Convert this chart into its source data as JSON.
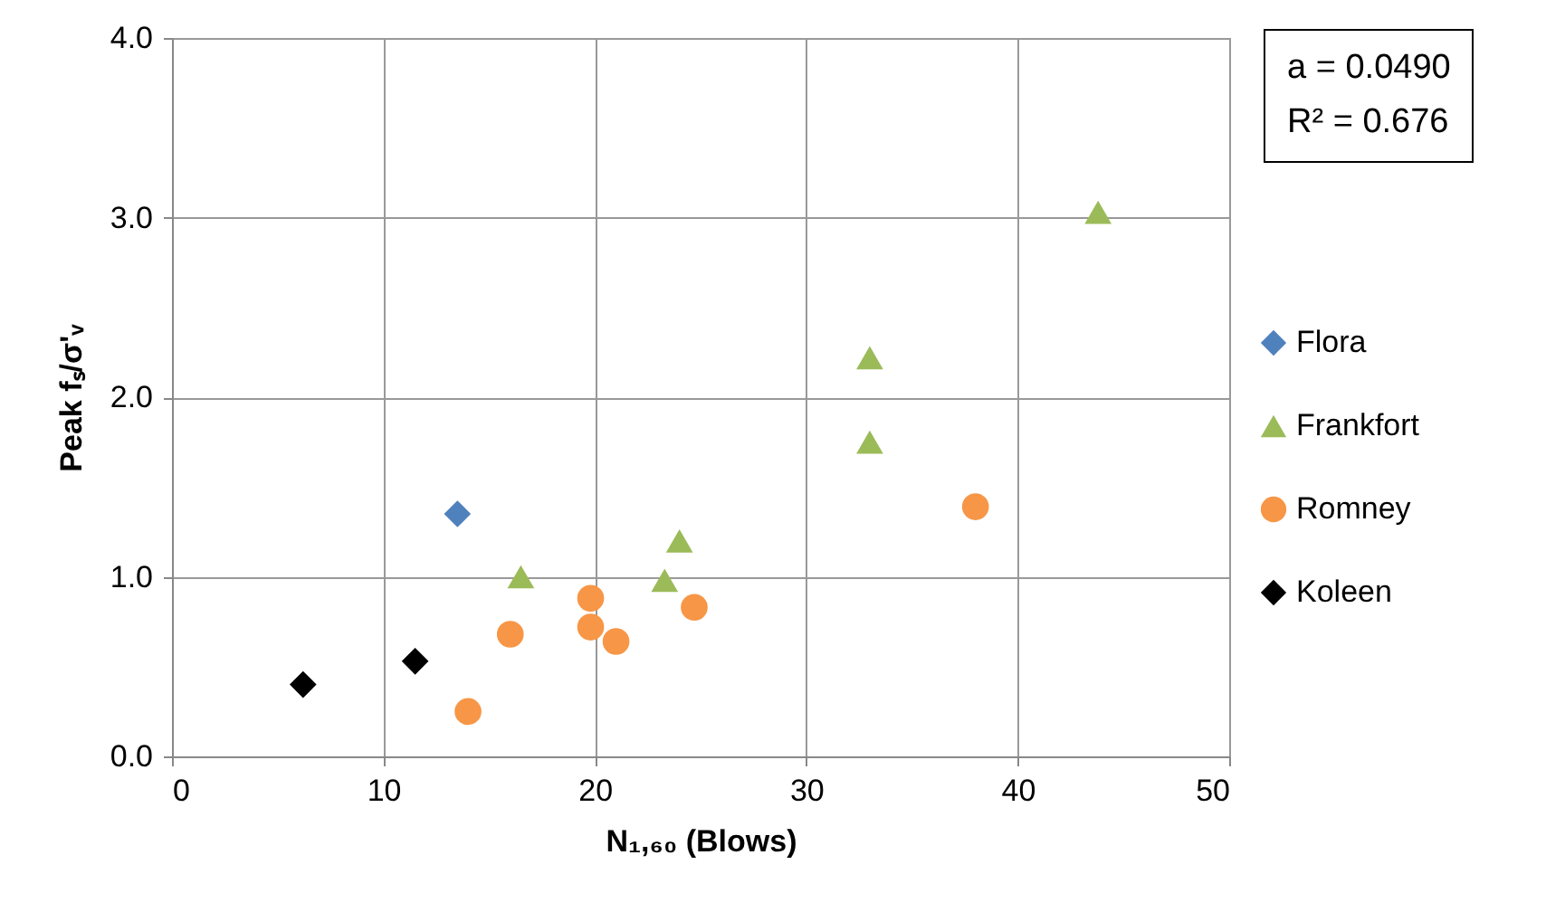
{
  "chart_data": {
    "type": "scatter",
    "xlabel": "N₁,₆₀ (Blows)",
    "ylabel": "Peak fₛ/σ'ᵥ",
    "xlim": [
      0,
      50
    ],
    "xticks": [
      0,
      10,
      20,
      30,
      40,
      50
    ],
    "ylim": [
      0,
      4
    ],
    "yticks": [
      {
        "value": 0,
        "label": "0.0"
      },
      {
        "value": 1,
        "label": "1.0"
      },
      {
        "value": 2,
        "label": "2.0"
      },
      {
        "value": 3,
        "label": "3.0"
      },
      {
        "value": 4,
        "label": "4.0"
      }
    ],
    "grid": true,
    "legend": "right",
    "annotations": [
      "a = 0.0490",
      "R² = 0.676"
    ],
    "series": [
      {
        "name": "Flora",
        "color": "#4f81bd",
        "marker": "diamond",
        "x": [
          13.5
        ],
        "values": [
          1.35
        ]
      },
      {
        "name": "Frankfort",
        "color": "#9bbb59",
        "marker": "triangle",
        "x": [
          16.5,
          23.3,
          24,
          33,
          33,
          43.8
        ],
        "values": [
          1.0,
          0.98,
          1.2,
          1.75,
          2.22,
          3.03
        ]
      },
      {
        "name": "Romney",
        "color": "#f79646",
        "marker": "circle",
        "x": [
          14,
          16,
          19.8,
          19.8,
          21,
          24.7,
          38
        ],
        "values": [
          0.25,
          0.68,
          0.88,
          0.72,
          0.64,
          0.83,
          1.39
        ]
      },
      {
        "name": "Koleen",
        "color": "#000000",
        "marker": "diamond",
        "x": [
          6.2,
          11.5
        ],
        "values": [
          0.4,
          0.53
        ]
      }
    ]
  }
}
